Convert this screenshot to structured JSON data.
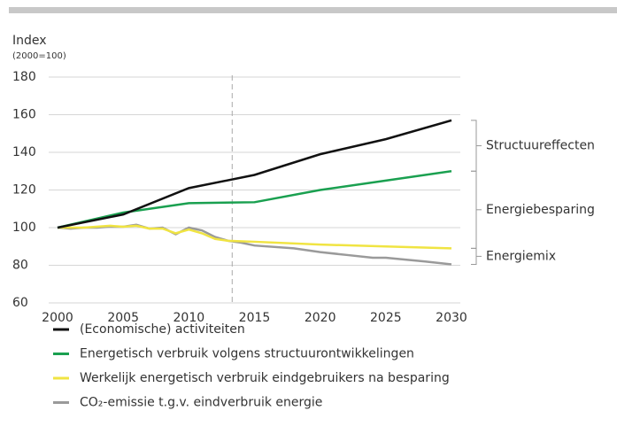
{
  "chart_data": {
    "type": "line",
    "y_label": "Index",
    "y_sublabel": "(2000=100)",
    "xlim": [
      2000,
      2030
    ],
    "xticks": [
      2000,
      2005,
      2010,
      2015,
      2020,
      2025,
      2030
    ],
    "ylim": [
      60,
      180
    ],
    "yticks": [
      60,
      80,
      100,
      120,
      140,
      160,
      180
    ],
    "grid": true,
    "divider_x": 2013.3,
    "series": [
      {
        "name": "(Economische) activiteiten",
        "color": "#111111",
        "x": [
          2000,
          2005,
          2010,
          2015,
          2020,
          2025,
          2030
        ],
        "values": [
          100,
          107,
          121,
          128,
          139,
          147,
          157
        ]
      },
      {
        "name": "Energetisch verbruik volgens structuurontwikkelingen",
        "color": "#1aa050",
        "x": [
          2000,
          2005,
          2010,
          2015,
          2020,
          2025,
          2030
        ],
        "values": [
          100,
          108,
          113,
          113.5,
          120,
          125,
          130
        ]
      },
      {
        "name": "Werkelijk energetisch verbruik eindgebruikers na besparing",
        "color": "#f0e442",
        "x": [
          2000,
          2002,
          2004,
          2005,
          2006,
          2007,
          2008,
          2009,
          2010,
          2011,
          2012,
          2013,
          2015,
          2020,
          2025,
          2030
        ],
        "values": [
          100,
          100,
          101,
          100.5,
          101,
          99.5,
          99.5,
          97,
          99,
          97,
          94,
          93,
          92.5,
          91,
          90,
          89
        ]
      },
      {
        "name": "CO₂-emissie t.g.v. eindverbruik energie",
        "color": "#9a9a9a",
        "x": [
          2000,
          2001,
          2002,
          2003,
          2004,
          2005,
          2006,
          2007,
          2008,
          2009,
          2010,
          2011,
          2012,
          2013,
          2014,
          2015,
          2018,
          2020,
          2022,
          2024,
          2025,
          2028,
          2030
        ],
        "values": [
          100,
          99.5,
          100,
          100,
          100.5,
          100.5,
          101.5,
          99.5,
          100,
          96.5,
          100,
          98.5,
          95,
          93,
          92,
          90.5,
          89,
          87,
          85.5,
          84,
          84,
          82,
          80.5
        ]
      }
    ],
    "brackets": [
      {
        "label": "Structuureffecten",
        "from": 157,
        "to": 130
      },
      {
        "label": "Energiebesparing",
        "from": 130,
        "to": 89
      },
      {
        "label": "Energiemix",
        "from": 89,
        "to": 80.5
      }
    ]
  }
}
